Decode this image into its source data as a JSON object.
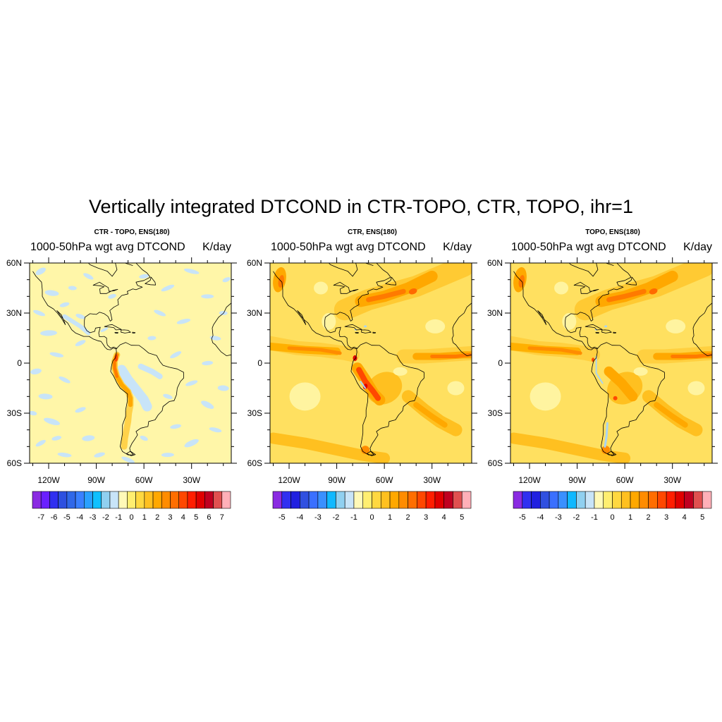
{
  "figure": {
    "title": "Vertically integrated DTCOND in CTR-TOPO, CTR, TOPO, ihr=1"
  },
  "map": {
    "lat_range": [
      -60,
      60
    ],
    "lon_range": [
      -132,
      -5
    ],
    "lat_ticks": [
      {
        "value": 60,
        "label": "60N"
      },
      {
        "value": 30,
        "label": "30N"
      },
      {
        "value": 0,
        "label": "0"
      },
      {
        "value": -30,
        "label": "30S"
      },
      {
        "value": -60,
        "label": "60S"
      }
    ],
    "lon_ticks": [
      {
        "value": -120,
        "label": "120W"
      },
      {
        "value": -90,
        "label": "90W"
      },
      {
        "value": -60,
        "label": "60W"
      },
      {
        "value": -30,
        "label": "30W"
      }
    ],
    "ocean_background": "#fff6a8",
    "coastline_color": "#000000"
  },
  "panels": [
    {
      "id": "diff",
      "title": "CTR - TOPO, ENS(180)",
      "left_string": "1000-50hPa wgt avg DTCOND",
      "right_string": "K/day",
      "base_color": "#fff6a8",
      "colorbar": {
        "colors": [
          "#8a2be2",
          "#6a20ff",
          "#3030f0",
          "#2d50e0",
          "#3068e8",
          "#3a80ff",
          "#2aa0ff",
          "#10c0ff",
          "#90d0f0",
          "#c8e4f8",
          "#fff9b8",
          "#ffee70",
          "#ffd840",
          "#ffc020",
          "#ffa800",
          "#ff8c00",
          "#ff6e00",
          "#ff4800",
          "#ff1e00",
          "#e00000",
          "#c00020",
          "#e05050",
          "#ffb0b8"
        ],
        "labels": [
          "-7",
          "-6",
          "-5",
          "-4",
          "-3",
          "-2",
          "-1",
          "0",
          "1",
          "2",
          "3",
          "4",
          "5",
          "6",
          "7"
        ],
        "label_start_index": 1
      },
      "features": [
        {
          "kind": "blobs",
          "color": "#c8e4f8",
          "note": "scattered weak negatives"
        },
        {
          "kind": "andes",
          "color": "#ffb000"
        }
      ]
    },
    {
      "id": "ctr",
      "title": "CTR, ENS(180)",
      "left_string": "1000-50hPa wgt avg DTCOND",
      "right_string": "K/day",
      "base_color": "#ffe060",
      "colorbar": {
        "colors": [
          "#8a2be2",
          "#3030f0",
          "#2020e0",
          "#3050e0",
          "#3a70ff",
          "#3a90ff",
          "#10b8ff",
          "#90d0f0",
          "#c8e4f8",
          "#fff9b8",
          "#ffee70",
          "#ffd840",
          "#ffc020",
          "#ffa800",
          "#ff8c00",
          "#ff6e00",
          "#ff4800",
          "#ff1e00",
          "#e00000",
          "#c00020",
          "#e05050",
          "#ffb0b8"
        ],
        "labels": [
          "-5",
          "-4",
          "-3",
          "-2",
          "-1",
          "0",
          "1",
          "2",
          "3",
          "4",
          "5"
        ],
        "label_start_index": 1
      }
    },
    {
      "id": "topo",
      "title": "TOPO, ENS(180)",
      "left_string": "1000-50hPa wgt avg DTCOND",
      "right_string": "K/day",
      "base_color": "#ffe060",
      "colorbar": {
        "colors": [
          "#8a2be2",
          "#3030f0",
          "#2020e0",
          "#3050e0",
          "#3a70ff",
          "#3a90ff",
          "#10b8ff",
          "#90d0f0",
          "#c8e4f8",
          "#fff9b8",
          "#ffee70",
          "#ffd840",
          "#ffc020",
          "#ffa800",
          "#ff8c00",
          "#ff6e00",
          "#ff4800",
          "#ff1e00",
          "#e00000",
          "#c00020",
          "#e05050",
          "#ffb0b8"
        ],
        "labels": [
          "-5",
          "-4",
          "-3",
          "-2",
          "-1",
          "0",
          "1",
          "2",
          "3",
          "4",
          "5"
        ],
        "label_start_index": 1
      }
    }
  ]
}
